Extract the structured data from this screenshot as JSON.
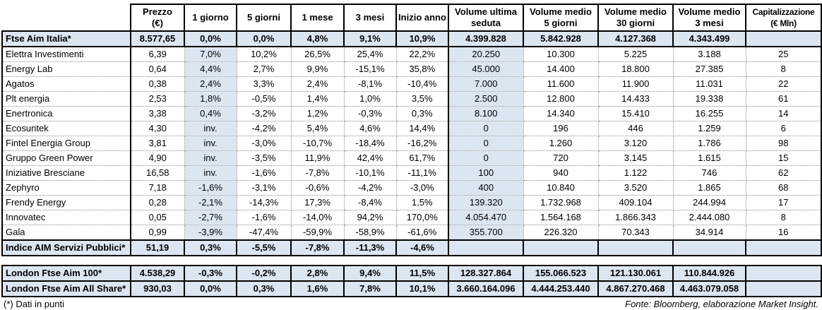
{
  "colors": {
    "shade": "#dce6f1",
    "border": "#000000",
    "header_bg": "#ffffff",
    "text": "#000000"
  },
  "main_table": {
    "columns": [
      "Prezzo\n(€)",
      "1 giorno",
      "5 giorni",
      "1 mese",
      "3 mesi",
      "Inizio anno",
      "Volume ultima\nseduta",
      "Volume medio\n5 giorni",
      "Volume medio\n30 giorni",
      "Volume medio\n3 mesi",
      "Capitalizzazione\n(€ Mln)"
    ],
    "rows": [
      {
        "name": "Ftse Aim Italia*",
        "type": "index",
        "cells": [
          "8.577,65",
          "0,0%",
          "0,0%",
          "4,8%",
          "9,1%",
          "10,9%",
          "4.399.828",
          "5.842.928",
          "4.127.368",
          "4.343.499",
          ""
        ]
      },
      {
        "name": "Elettra Investimenti",
        "type": "stock",
        "cells": [
          "6,39",
          "7,0%",
          "10,2%",
          "26,5%",
          "25,4%",
          "22,2%",
          "20.250",
          "10.300",
          "5.225",
          "3.188",
          "25"
        ]
      },
      {
        "name": "Energy Lab",
        "type": "stock",
        "cells": [
          "0,64",
          "4,4%",
          "2,7%",
          "9,9%",
          "-15,1%",
          "35,8%",
          "45.000",
          "14.400",
          "18.800",
          "27.385",
          "8"
        ]
      },
      {
        "name": "Agatos",
        "type": "stock",
        "cells": [
          "0,38",
          "2,4%",
          "3,3%",
          "2,4%",
          "-8,1%",
          "-10,4%",
          "7.000",
          "11.600",
          "11.900",
          "11.031",
          "22"
        ]
      },
      {
        "name": "Plt energia",
        "type": "stock",
        "cells": [
          "2,53",
          "1,8%",
          "-0,5%",
          "1,4%",
          "1,0%",
          "3,5%",
          "2.500",
          "12.800",
          "14.433",
          "19.338",
          "61"
        ]
      },
      {
        "name": "Enertronica",
        "type": "stock",
        "cells": [
          "3,38",
          "0,4%",
          "-3,2%",
          "1,2%",
          "-0,3%",
          "0,3%",
          "8.100",
          "14.340",
          "15.410",
          "16.255",
          "14"
        ]
      },
      {
        "name": "Ecosuntek",
        "type": "stock",
        "cells": [
          "4,30",
          "inv.",
          "-4,2%",
          "5,4%",
          "4,6%",
          "14,4%",
          "0",
          "196",
          "446",
          "1.259",
          "6"
        ]
      },
      {
        "name": "Fintel Energia Group",
        "type": "stock",
        "cells": [
          "3,81",
          "inv.",
          "-3,0%",
          "-10,7%",
          "-18,4%",
          "-16,2%",
          "0",
          "1.260",
          "3.120",
          "1.786",
          "98"
        ]
      },
      {
        "name": "Gruppo Green Power",
        "type": "stock",
        "cells": [
          "4,90",
          "inv.",
          "-3,5%",
          "11,9%",
          "42,4%",
          "61,7%",
          "0",
          "720",
          "3.145",
          "1.615",
          "15"
        ]
      },
      {
        "name": "Iniziative Bresciane",
        "type": "stock",
        "cells": [
          "16,58",
          "inv.",
          "-1,6%",
          "-7,8%",
          "-10,1%",
          "-11,1%",
          "100",
          "940",
          "1.122",
          "746",
          "62"
        ]
      },
      {
        "name": "Zephyro",
        "type": "stock",
        "cells": [
          "7,18",
          "-1,6%",
          "-3,1%",
          "-0,6%",
          "-4,2%",
          "-3,0%",
          "400",
          "10.840",
          "3.520",
          "1.865",
          "68"
        ]
      },
      {
        "name": "Frendy Energy",
        "type": "stock",
        "cells": [
          "0,28",
          "-2,1%",
          "-14,3%",
          "17,3%",
          "-8,4%",
          "1,5%",
          "139.320",
          "1.732.968",
          "409.104",
          "244.994",
          "17"
        ]
      },
      {
        "name": "Innovatec",
        "type": "stock",
        "cells": [
          "0,05",
          "-2,7%",
          "-1,6%",
          "-14,0%",
          "94,2%",
          "170,0%",
          "4.054.470",
          "1.564.168",
          "1.866.343",
          "2.444.080",
          "8"
        ]
      },
      {
        "name": "Gala",
        "type": "stock",
        "cells": [
          "0,99",
          "-3,9%",
          "-47,4%",
          "-59,9%",
          "-58,9%",
          "-61,6%",
          "355.700",
          "226.320",
          "70.343",
          "34.914",
          "16"
        ]
      },
      {
        "name": "Indice AIM Servizi Pubblici*",
        "type": "index",
        "cells": [
          "51,19",
          "0,3%",
          "-5,5%",
          "-7,8%",
          "-11,3%",
          "-4,6%",
          "",
          "",
          "",
          "",
          ""
        ]
      }
    ]
  },
  "london_table": {
    "rows": [
      {
        "name": "London Ftse Aim 100*",
        "type": "index",
        "cells": [
          "4.538,29",
          "-0,3%",
          "-0,2%",
          "2,8%",
          "9,4%",
          "11,5%",
          "128.327.864",
          "155.066.523",
          "121.130.061",
          "110.844.926",
          ""
        ]
      },
      {
        "name": "London Ftse Aim All Share*",
        "type": "index",
        "cells": [
          "930,03",
          "0,0%",
          "0,3%",
          "1,6%",
          "7,8%",
          "10,1%",
          "3.660.164.096",
          "4.444.253.440",
          "4.867.270.468",
          "4.463.079.058",
          ""
        ]
      }
    ]
  },
  "footer": {
    "note": "(*) Dati in punti",
    "source": "Fonte: Bloomberg, elaborazione Market Insight."
  }
}
